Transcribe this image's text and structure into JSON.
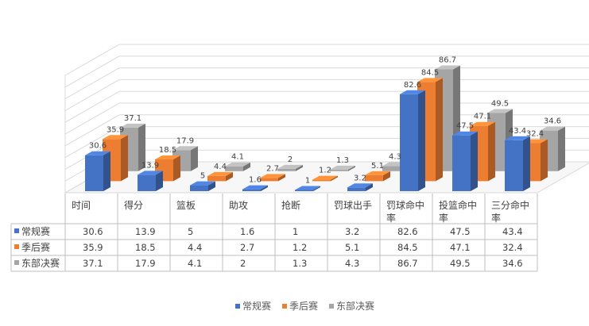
{
  "chart_data": {
    "type": "bar",
    "variant": "3d-clustered-column-with-data-table",
    "categories": [
      "时间",
      "得分",
      "篮板",
      "助攻",
      "抢断",
      "罚球出手",
      "罚球命中率",
      "投篮命中率",
      "三分命中率"
    ],
    "category_lines": [
      [
        "时间"
      ],
      [
        "得分"
      ],
      [
        "篮板"
      ],
      [
        "助攻"
      ],
      [
        "抢断"
      ],
      [
        "罚球出手"
      ],
      [
        "罚球命中",
        "率"
      ],
      [
        "投篮命中",
        "率"
      ],
      [
        "三分命中",
        "率"
      ]
    ],
    "series": [
      {
        "name": "常规赛",
        "color": "#4472C4",
        "values": [
          30.6,
          13.9,
          5,
          1.6,
          1,
          3.2,
          82.6,
          47.5,
          43.4
        ]
      },
      {
        "name": "季后赛",
        "color": "#ED7D31",
        "values": [
          35.9,
          18.5,
          4.4,
          2.7,
          1.2,
          5.1,
          84.5,
          47.1,
          32.4
        ]
      },
      {
        "name": "东部决赛",
        "color": "#A5A5A5",
        "values": [
          37.1,
          17.9,
          4.1,
          2,
          1.3,
          4.3,
          86.7,
          49.5,
          34.6
        ]
      }
    ],
    "ylim": [
      0,
      100
    ],
    "grid": true,
    "legend": "bottom",
    "data_labels": true
  }
}
